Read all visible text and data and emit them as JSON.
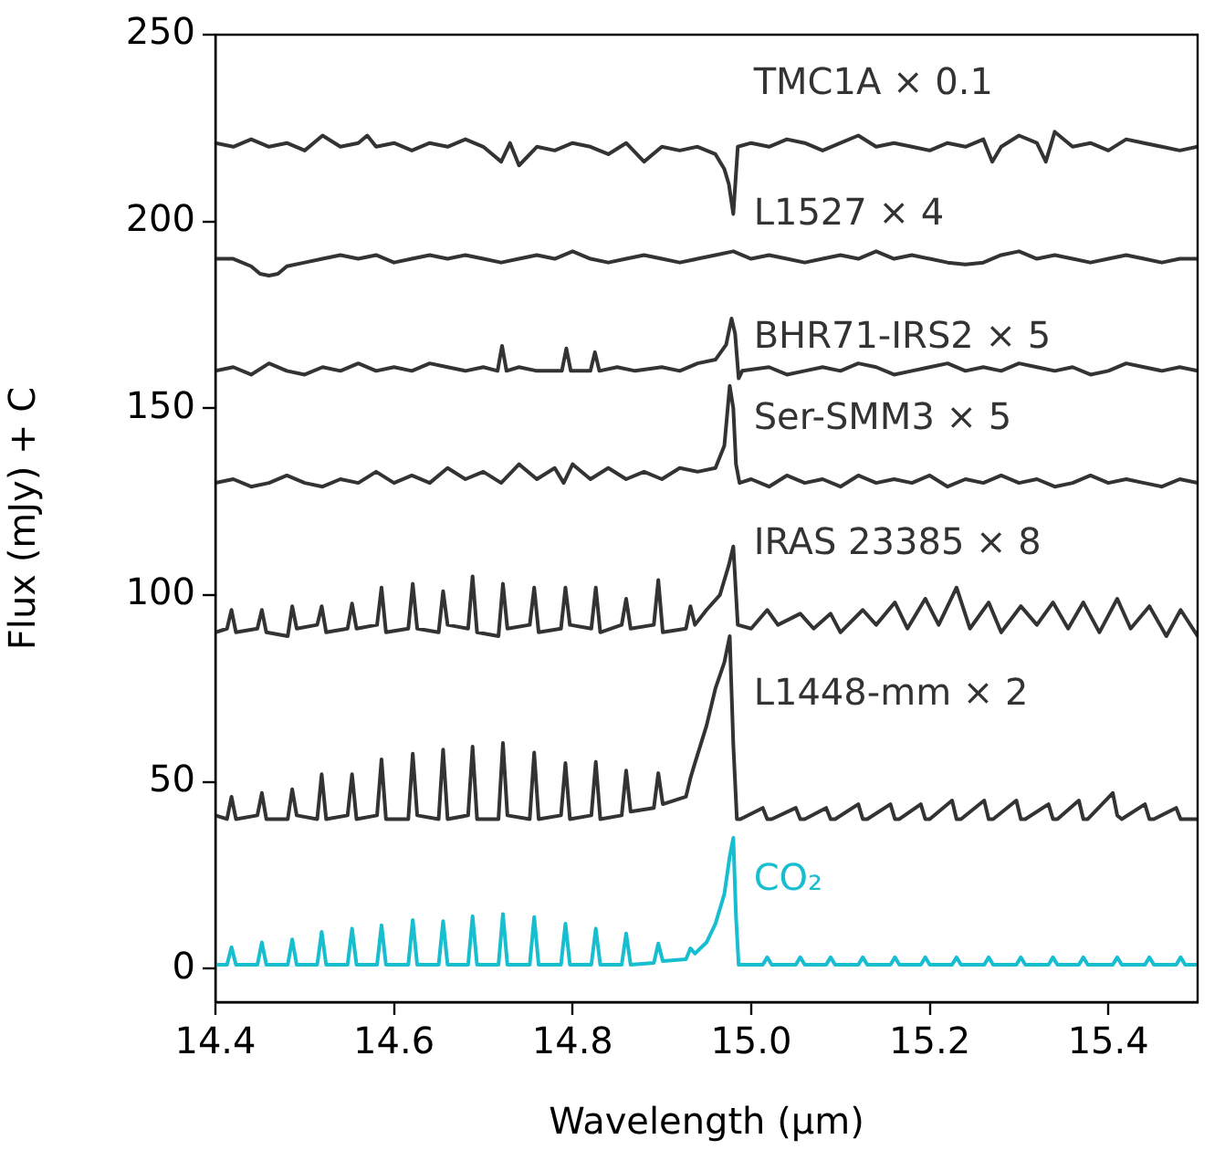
{
  "chart_data": {
    "type": "line",
    "xlabel": "Wavelength (μm)",
    "ylabel": "Flux (mJy) + C",
    "xlim": [
      14.4,
      15.5
    ],
    "xticks": [
      14.4,
      14.6,
      14.8,
      {
        "value": 15,
        "label": "15.0"
      },
      15.2,
      15.4
    ],
    "ylim": [
      -9,
      250
    ],
    "yticks": [
      0,
      50,
      100,
      150,
      200,
      250
    ],
    "grid": false,
    "legend": false,
    "marker": "none",
    "line_style": "solid",
    "series": [
      {
        "name": "TMC1A × 0.1",
        "color": "#333333",
        "x": [
          14.4,
          14.42,
          14.44,
          14.46,
          14.48,
          14.5,
          14.52,
          14.54,
          14.56,
          14.57,
          14.58,
          14.6,
          14.62,
          14.64,
          14.66,
          14.68,
          14.7,
          14.72,
          14.73,
          14.74,
          14.76,
          14.78,
          14.8,
          14.82,
          14.84,
          14.86,
          14.88,
          14.9,
          14.92,
          14.94,
          14.96,
          14.97,
          14.975,
          14.98,
          14.985,
          15.0,
          15.02,
          15.04,
          15.06,
          15.08,
          15.1,
          15.12,
          15.14,
          15.16,
          15.18,
          15.2,
          15.22,
          15.24,
          15.26,
          15.27,
          15.28,
          15.3,
          15.32,
          15.33,
          15.34,
          15.36,
          15.38,
          15.4,
          15.42,
          15.44,
          15.46,
          15.48,
          15.5
        ],
        "values": [
          221,
          220,
          222,
          220,
          221,
          219,
          223,
          220,
          221,
          223,
          220,
          221,
          219,
          221,
          220,
          222,
          220,
          216,
          221,
          215,
          220,
          219,
          221,
          220,
          218,
          221,
          216,
          220,
          219,
          220,
          218,
          214,
          210,
          202,
          220,
          221,
          220,
          222,
          221,
          219,
          221,
          223,
          220,
          221,
          220,
          219,
          221,
          220,
          222,
          216,
          220,
          223,
          221,
          216,
          224,
          220,
          221,
          219,
          222,
          221,
          220,
          219,
          220
        ]
      },
      {
        "name": "L1527 × 4",
        "color": "#333333",
        "x": [
          14.4,
          14.42,
          14.44,
          14.45,
          14.46,
          14.47,
          14.48,
          14.5,
          14.52,
          14.54,
          14.56,
          14.58,
          14.6,
          14.62,
          14.64,
          14.66,
          14.68,
          14.7,
          14.72,
          14.74,
          14.76,
          14.78,
          14.8,
          14.82,
          14.84,
          14.86,
          14.88,
          14.9,
          14.92,
          14.94,
          14.96,
          14.98,
          15.0,
          15.02,
          15.04,
          15.06,
          15.08,
          15.1,
          15.12,
          15.14,
          15.16,
          15.18,
          15.2,
          15.22,
          15.24,
          15.26,
          15.28,
          15.3,
          15.32,
          15.34,
          15.36,
          15.38,
          15.4,
          15.42,
          15.44,
          15.46,
          15.48,
          15.5
        ],
        "values": [
          190,
          190,
          188,
          186,
          185.5,
          186,
          188,
          189,
          190,
          191,
          190,
          191,
          189,
          190,
          191,
          190,
          191,
          190,
          189,
          190,
          191,
          190,
          192,
          190,
          189,
          190,
          191,
          190,
          189,
          190,
          191,
          192,
          190,
          191,
          190,
          189,
          190,
          191,
          190,
          192,
          190,
          191,
          190,
          189,
          188.5,
          189,
          191,
          192,
          190,
          191,
          190,
          189,
          190,
          191,
          190,
          189,
          190,
          190
        ]
      },
      {
        "name": "BHR71-IRS2 × 5",
        "color": "#333333",
        "x": [
          14.4,
          14.42,
          14.44,
          14.46,
          14.48,
          14.5,
          14.52,
          14.54,
          14.56,
          14.58,
          14.6,
          14.62,
          14.64,
          14.66,
          14.68,
          14.7,
          14.716,
          14.721,
          14.726,
          14.74,
          14.76,
          14.788,
          14.793,
          14.798,
          14.82,
          14.825,
          14.83,
          14.85,
          14.87,
          14.9,
          14.92,
          14.94,
          14.96,
          14.972,
          14.978,
          14.982,
          14.986,
          14.99,
          15.02,
          15.04,
          15.06,
          15.08,
          15.1,
          15.12,
          15.14,
          15.16,
          15.18,
          15.2,
          15.22,
          15.24,
          15.26,
          15.28,
          15.3,
          15.32,
          15.34,
          15.36,
          15.38,
          15.4,
          15.42,
          15.44,
          15.46,
          15.48,
          15.5
        ],
        "values": [
          160,
          161,
          159,
          162,
          160,
          159,
          161,
          160,
          162,
          160,
          161,
          160,
          162,
          161,
          160,
          161,
          160,
          166.7,
          160,
          161,
          160,
          160,
          166,
          160,
          160,
          165,
          160,
          161,
          160,
          161,
          160,
          162,
          163,
          167,
          174,
          170,
          158,
          160,
          161,
          159,
          160,
          161,
          160,
          162,
          161,
          159,
          160,
          161,
          162,
          160,
          161,
          160,
          162,
          161,
          160,
          161,
          159,
          160,
          162,
          161,
          160,
          161,
          160
        ]
      },
      {
        "name": "Ser-SMM3 × 5",
        "color": "#333333",
        "x": [
          14.4,
          14.42,
          14.44,
          14.46,
          14.48,
          14.5,
          14.52,
          14.54,
          14.56,
          14.58,
          14.6,
          14.62,
          14.64,
          14.66,
          14.68,
          14.7,
          14.72,
          14.74,
          14.76,
          14.78,
          14.79,
          14.8,
          14.82,
          14.84,
          14.86,
          14.88,
          14.9,
          14.92,
          14.94,
          14.96,
          14.97,
          14.976,
          14.98,
          14.983,
          14.987,
          15.0,
          15.02,
          15.04,
          15.06,
          15.08,
          15.1,
          15.12,
          15.14,
          15.16,
          15.18,
          15.2,
          15.22,
          15.24,
          15.26,
          15.28,
          15.3,
          15.32,
          15.34,
          15.36,
          15.38,
          15.4,
          15.42,
          15.44,
          15.46,
          15.48,
          15.5
        ],
        "values": [
          130,
          131,
          129,
          130,
          132,
          130,
          129,
          131,
          130,
          133,
          130,
          132,
          130,
          134,
          131,
          133,
          130,
          135,
          131,
          134,
          130,
          135,
          131,
          134,
          131,
          133,
          131,
          134,
          133,
          134,
          140,
          156,
          150,
          135,
          130,
          131,
          129,
          132,
          130,
          131,
          129,
          132,
          130,
          131,
          130,
          132,
          129,
          131,
          130,
          132,
          130,
          131,
          129,
          130,
          132,
          130,
          131,
          130,
          129,
          131,
          130
        ]
      },
      {
        "name": "IRAS 23385 × 8",
        "color": "#333333",
        "x": [
          14.4,
          14.413,
          14.418,
          14.423,
          14.447,
          14.452,
          14.457,
          14.481,
          14.486,
          14.491,
          14.514,
          14.519,
          14.524,
          14.548,
          14.553,
          14.558,
          14.581,
          14.586,
          14.591,
          14.616,
          14.621,
          14.626,
          14.65,
          14.655,
          14.66,
          14.683,
          14.688,
          14.693,
          14.717,
          14.722,
          14.727,
          14.752,
          14.757,
          14.762,
          14.787,
          14.792,
          14.797,
          14.821,
          14.826,
          14.831,
          14.855,
          14.86,
          14.865,
          14.891,
          14.896,
          14.901,
          14.927,
          14.932,
          14.937,
          14.95,
          14.965,
          14.975,
          14.98,
          14.985,
          15.0,
          15.018,
          15.03,
          15.055,
          15.07,
          15.089,
          15.1,
          15.125,
          15.14,
          15.161,
          15.175,
          15.195,
          15.21,
          15.23,
          15.245,
          15.266,
          15.28,
          15.302,
          15.32,
          15.338,
          15.355,
          15.372,
          15.39,
          15.41,
          15.425,
          15.446,
          15.465,
          15.481,
          15.5
        ],
        "values": [
          90,
          91,
          96,
          90,
          91,
          96,
          90,
          89,
          97,
          91,
          92,
          97,
          90,
          91,
          97.7,
          91,
          92,
          102,
          90,
          91,
          103,
          91,
          90,
          101,
          92,
          91,
          105,
          90,
          89,
          103,
          91,
          92,
          102,
          90,
          91,
          102,
          92,
          91,
          102,
          90,
          92,
          99,
          91,
          92,
          104,
          90,
          91,
          97,
          92,
          96,
          100,
          108,
          113,
          92,
          91,
          96,
          92,
          95,
          91,
          95,
          90,
          96,
          92,
          98,
          91,
          99,
          92,
          102,
          91,
          98,
          90,
          97,
          92,
          98,
          91,
          98,
          90,
          99,
          91,
          97,
          89,
          96,
          89
        ]
      },
      {
        "name": "L1448-mm × 2",
        "color": "#333333",
        "x": [
          14.4,
          14.413,
          14.418,
          14.423,
          14.447,
          14.452,
          14.457,
          14.481,
          14.486,
          14.491,
          14.514,
          14.519,
          14.524,
          14.548,
          14.553,
          14.558,
          14.581,
          14.586,
          14.591,
          14.616,
          14.621,
          14.626,
          14.65,
          14.655,
          14.66,
          14.683,
          14.688,
          14.693,
          14.717,
          14.722,
          14.727,
          14.752,
          14.757,
          14.762,
          14.787,
          14.792,
          14.797,
          14.821,
          14.826,
          14.831,
          14.855,
          14.86,
          14.865,
          14.891,
          14.896,
          14.901,
          14.927,
          14.932,
          14.937,
          14.95,
          14.96,
          14.97,
          14.976,
          14.98,
          14.984,
          14.988,
          15.013,
          15.018,
          15.023,
          15.05,
          15.055,
          15.06,
          15.084,
          15.089,
          15.094,
          15.12,
          15.125,
          15.13,
          15.156,
          15.161,
          15.166,
          15.19,
          15.195,
          15.2,
          15.225,
          15.23,
          15.235,
          15.261,
          15.266,
          15.271,
          15.297,
          15.302,
          15.307,
          15.333,
          15.338,
          15.343,
          15.367,
          15.372,
          15.377,
          15.405,
          15.41,
          15.415,
          15.441,
          15.446,
          15.451,
          15.476,
          15.481,
          15.486,
          15.5
        ],
        "values": [
          41,
          40,
          46,
          40,
          41,
          47,
          40,
          40,
          48,
          41,
          40,
          52,
          40,
          41,
          52,
          40,
          41,
          56,
          40,
          40,
          57.5,
          41,
          40,
          58.6,
          40,
          41,
          59.4,
          40,
          40,
          60.4,
          41,
          40,
          57.8,
          40,
          41,
          55,
          40,
          41,
          55.3,
          40,
          41,
          53,
          42,
          43,
          52.3,
          44,
          46,
          51,
          55,
          65,
          75,
          82,
          89,
          60,
          40,
          40,
          43,
          40,
          40,
          43,
          40,
          40,
          43,
          40,
          40,
          44,
          40,
          40,
          44,
          40,
          40,
          44,
          40,
          40,
          45,
          40,
          40,
          45,
          40,
          40,
          45,
          40,
          40,
          44,
          40,
          40,
          45,
          40,
          40,
          47,
          41,
          40,
          44,
          40,
          40,
          43,
          40,
          40,
          40
        ]
      },
      {
        "name": "CO₂",
        "color": "#17becf",
        "x": [
          14.4,
          14.413,
          14.418,
          14.423,
          14.447,
          14.452,
          14.457,
          14.481,
          14.486,
          14.491,
          14.514,
          14.519,
          14.524,
          14.548,
          14.553,
          14.558,
          14.581,
          14.586,
          14.591,
          14.616,
          14.621,
          14.626,
          14.65,
          14.655,
          14.66,
          14.683,
          14.688,
          14.693,
          14.717,
          14.722,
          14.727,
          14.752,
          14.757,
          14.762,
          14.787,
          14.792,
          14.797,
          14.821,
          14.826,
          14.831,
          14.855,
          14.86,
          14.865,
          14.891,
          14.896,
          14.901,
          14.927,
          14.932,
          14.937,
          14.95,
          14.96,
          14.97,
          14.976,
          14.98,
          14.983,
          14.986,
          15.013,
          15.018,
          15.023,
          15.05,
          15.055,
          15.06,
          15.084,
          15.089,
          15.094,
          15.12,
          15.125,
          15.13,
          15.156,
          15.161,
          15.166,
          15.19,
          15.195,
          15.2,
          15.225,
          15.23,
          15.235,
          15.261,
          15.266,
          15.271,
          15.297,
          15.302,
          15.307,
          15.333,
          15.338,
          15.343,
          15.367,
          15.372,
          15.377,
          15.405,
          15.41,
          15.415,
          15.441,
          15.446,
          15.451,
          15.476,
          15.481,
          15.486,
          15.5
        ],
        "values": [
          1,
          1,
          5.7,
          1,
          1,
          7,
          1,
          1,
          7.8,
          1,
          1,
          9.8,
          1,
          1,
          10.7,
          1,
          1,
          11.6,
          1,
          1,
          13,
          1,
          1,
          12.7,
          1,
          1,
          14,
          1,
          1,
          14.6,
          1,
          1,
          13.8,
          1,
          1,
          12,
          1,
          1,
          10.7,
          1,
          1,
          9.4,
          1,
          1.5,
          6.7,
          2,
          2.5,
          5.4,
          4,
          7,
          12,
          20,
          30,
          35,
          14,
          1,
          1,
          3,
          1,
          1,
          3,
          1,
          1,
          3,
          1,
          1,
          3,
          1,
          1,
          3,
          1,
          1,
          3,
          1,
          1,
          3,
          1,
          1,
          3,
          1,
          1,
          3,
          1,
          1,
          3,
          1,
          1,
          3,
          1,
          1,
          3,
          1,
          1,
          3,
          1,
          1,
          3,
          1,
          1
        ]
      }
    ]
  }
}
